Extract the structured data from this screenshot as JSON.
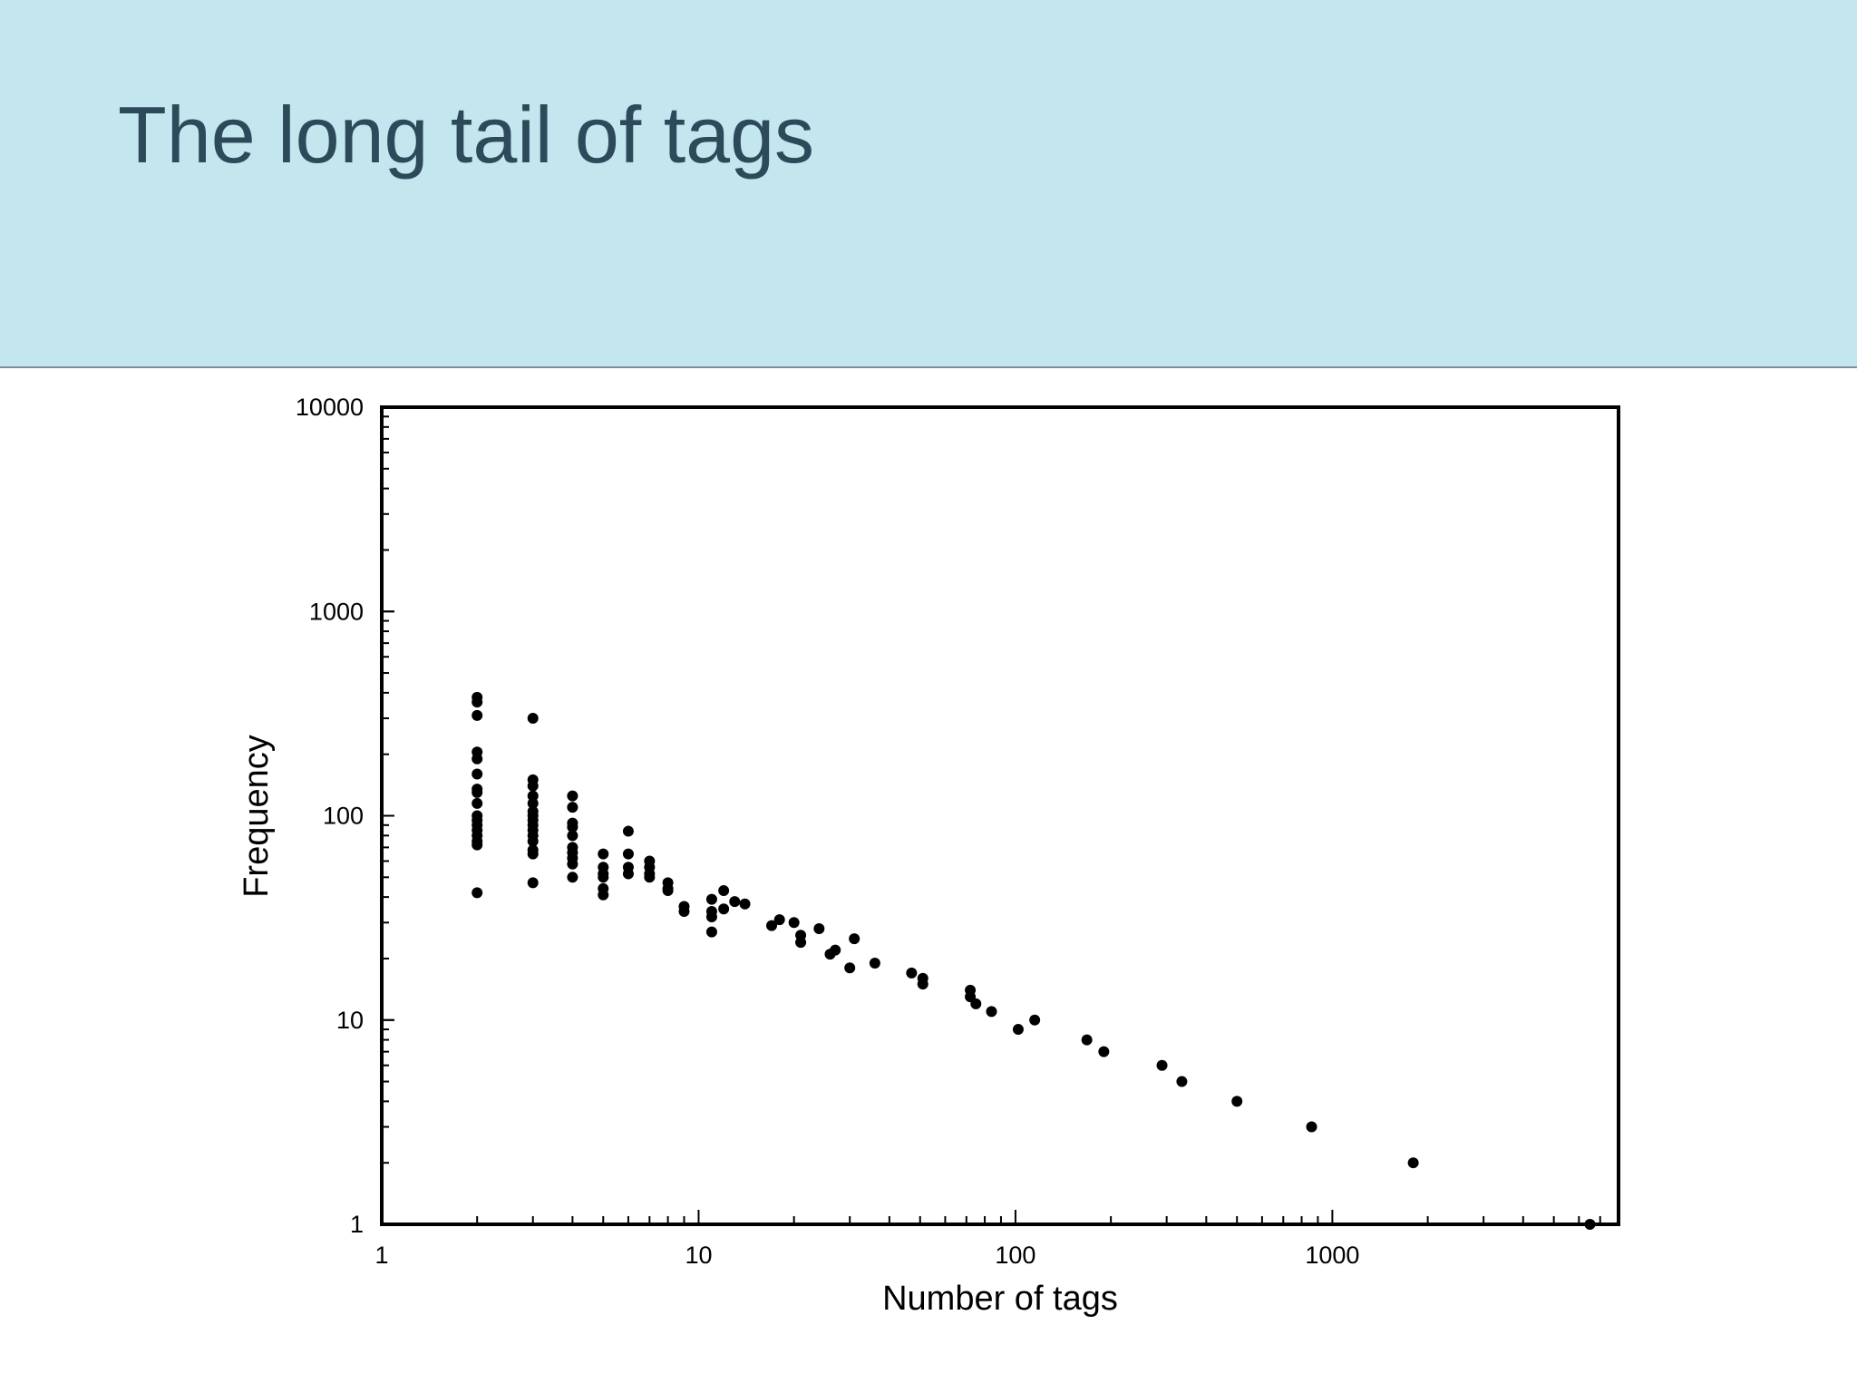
{
  "slide": {
    "title": "The long tail of tags"
  },
  "chart_data": {
    "type": "scatter",
    "title": "",
    "xlabel": "Number of tags",
    "ylabel": "Frequency",
    "xscale": "log",
    "yscale": "log",
    "xlim": [
      1,
      8000
    ],
    "ylim": [
      1,
      10000
    ],
    "grid": false,
    "x_ticks": [
      "1",
      "10",
      "100",
      "1000"
    ],
    "y_ticks": [
      "1",
      "10",
      "100",
      "1000",
      "10000"
    ],
    "marker_color": "#000000",
    "points": [
      [
        2,
        380
      ],
      [
        2,
        360
      ],
      [
        2,
        310
      ],
      [
        2,
        205
      ],
      [
        2,
        190
      ],
      [
        2,
        160
      ],
      [
        2,
        135
      ],
      [
        2,
        130
      ],
      [
        2,
        115
      ],
      [
        2,
        100
      ],
      [
        2,
        95
      ],
      [
        2,
        90
      ],
      [
        2,
        85
      ],
      [
        2,
        80
      ],
      [
        2,
        75
      ],
      [
        2,
        72
      ],
      [
        2,
        42
      ],
      [
        3,
        300
      ],
      [
        3,
        150
      ],
      [
        3,
        140
      ],
      [
        3,
        125
      ],
      [
        3,
        115
      ],
      [
        3,
        105
      ],
      [
        3,
        100
      ],
      [
        3,
        95
      ],
      [
        3,
        90
      ],
      [
        3,
        85
      ],
      [
        3,
        80
      ],
      [
        3,
        75
      ],
      [
        3,
        68
      ],
      [
        3,
        65
      ],
      [
        3,
        47
      ],
      [
        4,
        125
      ],
      [
        4,
        110
      ],
      [
        4,
        92
      ],
      [
        4,
        88
      ],
      [
        4,
        80
      ],
      [
        4,
        70
      ],
      [
        4,
        66
      ],
      [
        4,
        62
      ],
      [
        4,
        58
      ],
      [
        4,
        50
      ],
      [
        5,
        65
      ],
      [
        5,
        56
      ],
      [
        5,
        52
      ],
      [
        5,
        50
      ],
      [
        5,
        44
      ],
      [
        5,
        41
      ],
      [
        6,
        84
      ],
      [
        6,
        65
      ],
      [
        6,
        56
      ],
      [
        6,
        52
      ],
      [
        7,
        60
      ],
      [
        7,
        56
      ],
      [
        7,
        52
      ],
      [
        7,
        50
      ],
      [
        8,
        47
      ],
      [
        8,
        44
      ],
      [
        8,
        43
      ],
      [
        9,
        36
      ],
      [
        9,
        34
      ],
      [
        11,
        39
      ],
      [
        11,
        34
      ],
      [
        11,
        32
      ],
      [
        11,
        27
      ],
      [
        12,
        43
      ],
      [
        12,
        35
      ],
      [
        13,
        38
      ],
      [
        14,
        37
      ],
      [
        17,
        29
      ],
      [
        18,
        31
      ],
      [
        20,
        30
      ],
      [
        21,
        26
      ],
      [
        21,
        24
      ],
      [
        24,
        28
      ],
      [
        26,
        21
      ],
      [
        27,
        22
      ],
      [
        30,
        18
      ],
      [
        31,
        25
      ],
      [
        36,
        19
      ],
      [
        47,
        17
      ],
      [
        51,
        16
      ],
      [
        51,
        15
      ],
      [
        72,
        14
      ],
      [
        72,
        13
      ],
      [
        75,
        12
      ],
      [
        84,
        11
      ],
      [
        102,
        9
      ],
      [
        115,
        10
      ],
      [
        168,
        8
      ],
      [
        190,
        7
      ],
      [
        290,
        6
      ],
      [
        335,
        5
      ],
      [
        500,
        4
      ],
      [
        860,
        3
      ],
      [
        1800,
        2
      ],
      [
        6500,
        1
      ]
    ]
  }
}
